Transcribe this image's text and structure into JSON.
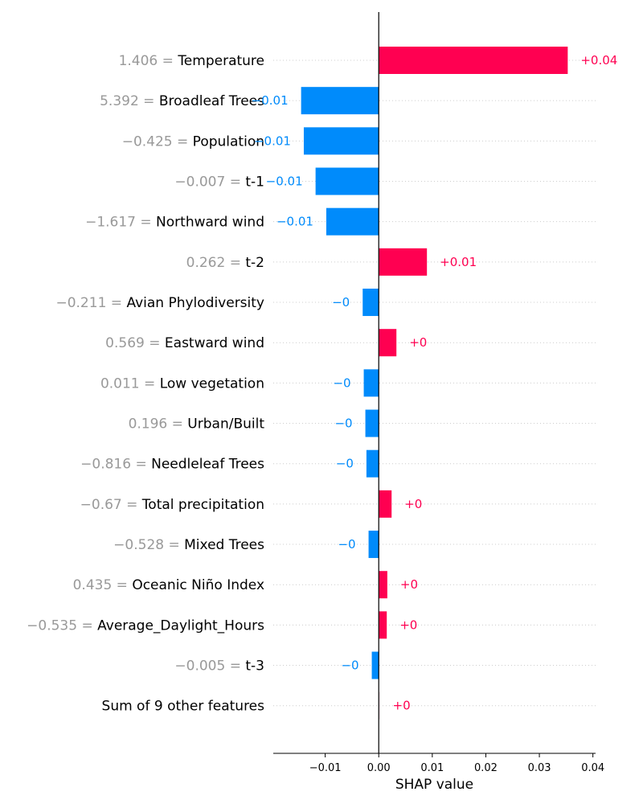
{
  "chart_data": {
    "type": "bar",
    "orientation": "horizontal",
    "xlabel": "SHAP value",
    "xlim": [
      -0.0197,
      0.0405
    ],
    "xticks": [
      -0.01,
      0.0,
      0.01,
      0.02,
      0.03,
      0.04
    ],
    "xtick_labels": [
      "−0.01",
      "0.00",
      "0.01",
      "0.02",
      "0.03",
      "0.04"
    ],
    "grid": "horizontal dotted row lines",
    "colors": {
      "positive": "#ff0051",
      "negative": "#008bfb",
      "feature_value": "#999999",
      "zero_line": "#000000"
    },
    "features": [
      {
        "value_label": "1.406",
        "name": "Temperature",
        "shap": 0.0353,
        "label": "+0.04"
      },
      {
        "value_label": "5.392",
        "name": "Broadleaf Trees",
        "shap": -0.0145,
        "label": "−0.01"
      },
      {
        "value_label": "−0.425",
        "name": "Population",
        "shap": -0.014,
        "label": "−0.01"
      },
      {
        "value_label": "−0.007",
        "name": "t-1",
        "shap": -0.0118,
        "label": "−0.01"
      },
      {
        "value_label": "−1.617",
        "name": "Northward wind",
        "shap": -0.0098,
        "label": "−0.01"
      },
      {
        "value_label": "0.262",
        "name": "t-2",
        "shap": 0.009,
        "label": "+0.01"
      },
      {
        "value_label": "−0.211",
        "name": "Avian Phylodiversity",
        "shap": -0.003,
        "label": "−0"
      },
      {
        "value_label": "0.569",
        "name": "Eastward wind",
        "shap": 0.0033,
        "label": "+0"
      },
      {
        "value_label": "0.011",
        "name": "Low vegetation",
        "shap": -0.0028,
        "label": "−0"
      },
      {
        "value_label": "0.196",
        "name": "Urban/Built",
        "shap": -0.0025,
        "label": "−0"
      },
      {
        "value_label": "−0.816",
        "name": "Needleleaf Trees",
        "shap": -0.0023,
        "label": "−0"
      },
      {
        "value_label": "−0.67",
        "name": "Total precipitation",
        "shap": 0.0024,
        "label": "+0"
      },
      {
        "value_label": "−0.528",
        "name": "Mixed Trees",
        "shap": -0.0019,
        "label": "−0"
      },
      {
        "value_label": "0.435",
        "name": "Oceanic Niño Index",
        "shap": 0.0016,
        "label": "+0"
      },
      {
        "value_label": "−0.535",
        "name": "Average_Daylight_Hours",
        "shap": 0.0015,
        "label": "+0"
      },
      {
        "value_label": "−0.005",
        "name": "t-3",
        "shap": -0.0013,
        "label": "−0"
      },
      {
        "value_label": "",
        "name": "Sum of 9 other features",
        "shap": 0.0002,
        "label": "+0"
      }
    ]
  }
}
